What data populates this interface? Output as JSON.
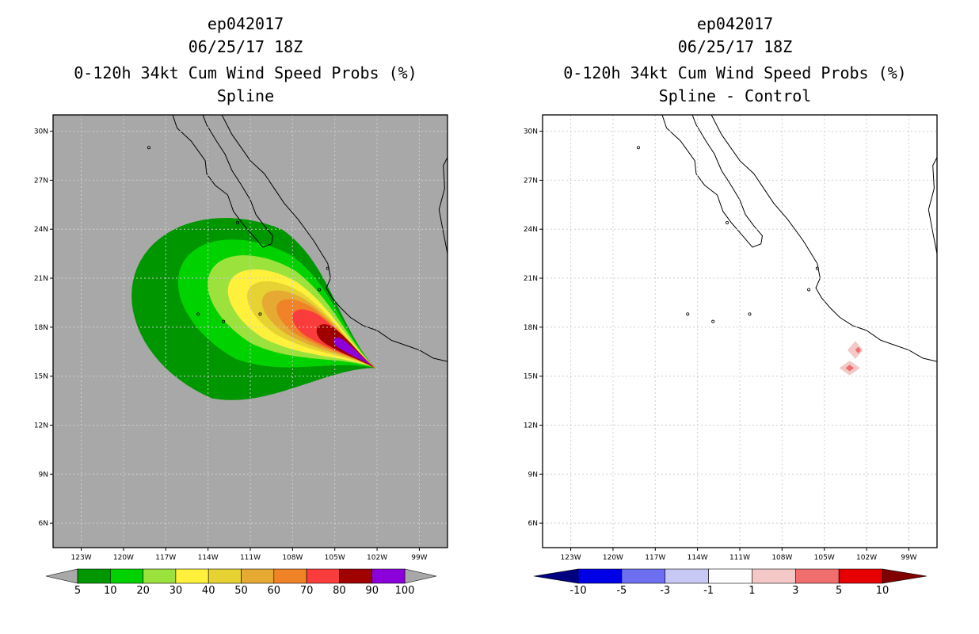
{
  "chart_data": [
    {
      "type": "heatmap",
      "panel": "left",
      "title_lines": [
        "ep042017",
        "06/25/17 18Z",
        "0-120h 34kt Cum Wind Speed Probs (%)",
        "Spline"
      ],
      "xlabel": "",
      "ylabel": "",
      "lon_range": [
        -125,
        -97
      ],
      "lat_range": [
        4.5,
        31
      ],
      "x_ticks": [
        "123W",
        "120W",
        "117W",
        "114W",
        "111W",
        "108W",
        "105W",
        "102W",
        "99W"
      ],
      "x_tick_values": [
        -123,
        -120,
        -117,
        -114,
        -111,
        -108,
        -105,
        -102,
        -99
      ],
      "y_ticks": [
        "30N",
        "27N",
        "24N",
        "21N",
        "18N",
        "15N",
        "12N",
        "9N",
        "6N"
      ],
      "y_tick_values": [
        30,
        27,
        24,
        21,
        18,
        15,
        12,
        9,
        6
      ],
      "grid": true,
      "background": "#a8a8a8",
      "colorbar": {
        "labels": [
          "5",
          "10",
          "20",
          "30",
          "40",
          "50",
          "60",
          "70",
          "80",
          "90",
          "100"
        ],
        "colors": [
          "#009600",
          "#00d200",
          "#9be23c",
          "#fff03c",
          "#e6d232",
          "#e6aa32",
          "#f08228",
          "#fa3c3c",
          "#a00000",
          "#8c00dc"
        ]
      },
      "features": [
        {
          "name": "prob-contour-5",
          "level": 5,
          "color": "#009600",
          "cx": -111.2,
          "cy": 18.8,
          "rx": 8.5,
          "ry": 5.6,
          "tip": [
            -102.1,
            15.5
          ],
          "rot": -22
        },
        {
          "name": "prob-contour-10",
          "level": 10,
          "color": "#00d200",
          "cx": -110.0,
          "cy": 19.2,
          "rx": 6.6,
          "ry": 3.6,
          "tip": [
            -102.1,
            15.5
          ],
          "rot": -22
        },
        {
          "name": "prob-contour-20",
          "level": 20,
          "color": "#9be23c",
          "cx": -109.3,
          "cy": 19.2,
          "rx": 5.2,
          "ry": 2.6,
          "tip": [
            -102.1,
            15.5
          ],
          "rot": -24
        },
        {
          "name": "prob-contour-30",
          "level": 30,
          "color": "#fff03c",
          "cx": -108.8,
          "cy": 19.0,
          "rx": 4.2,
          "ry": 2.0,
          "tip": [
            -102.1,
            15.5
          ],
          "rot": -26
        },
        {
          "name": "prob-contour-40",
          "level": 40,
          "color": "#e6d232",
          "cx": -108.2,
          "cy": 18.8,
          "rx": 3.4,
          "ry": 1.5,
          "tip": [
            -102.1,
            15.5
          ],
          "rot": -27
        },
        {
          "name": "prob-contour-50",
          "level": 50,
          "color": "#e6aa32",
          "cx": -107.7,
          "cy": 18.6,
          "rx": 2.8,
          "ry": 1.2,
          "tip": [
            -102.1,
            15.5
          ],
          "rot": -28
        },
        {
          "name": "prob-contour-60",
          "level": 60,
          "color": "#f08228",
          "cx": -107.2,
          "cy": 18.4,
          "rx": 2.2,
          "ry": 0.95,
          "tip": [
            -102.1,
            15.5
          ],
          "rot": -29
        },
        {
          "name": "prob-contour-70",
          "level": 70,
          "color": "#fa3c3c",
          "cx": -106.6,
          "cy": 18.1,
          "rx": 1.6,
          "ry": 0.75,
          "tip": [
            -102.1,
            15.5
          ],
          "rot": -31
        },
        {
          "name": "prob-contour-80",
          "level": 80,
          "color": "#a00000",
          "cx": -105.4,
          "cy": 17.5,
          "rx": 1.0,
          "ry": 0.55,
          "tip": [
            -102.2,
            15.5
          ],
          "rot": -33
        },
        {
          "name": "prob-contour-90",
          "level": 90,
          "color": "#8c00dc",
          "cx": -104.6,
          "cy": 17.0,
          "rx": 0.55,
          "ry": 0.28,
          "tip": [
            -102.3,
            15.6
          ],
          "rot": -36
        }
      ]
    },
    {
      "type": "heatmap",
      "panel": "right",
      "title_lines": [
        "ep042017",
        "06/25/17 18Z",
        "0-120h 34kt Cum Wind Speed Probs (%)",
        "Spline - Control"
      ],
      "xlabel": "",
      "ylabel": "",
      "lon_range": [
        -125,
        -97
      ],
      "lat_range": [
        4.5,
        31
      ],
      "x_ticks": [
        "123W",
        "120W",
        "117W",
        "114W",
        "111W",
        "108W",
        "105W",
        "102W",
        "99W"
      ],
      "x_tick_values": [
        -123,
        -120,
        -117,
        -114,
        -111,
        -108,
        -105,
        -102,
        -99
      ],
      "y_ticks": [
        "30N",
        "27N",
        "24N",
        "21N",
        "18N",
        "15N",
        "12N",
        "9N",
        "6N"
      ],
      "y_tick_values": [
        30,
        27,
        24,
        21,
        18,
        15,
        12,
        9,
        6
      ],
      "grid": true,
      "background": "#ffffff",
      "colorbar": {
        "labels": [
          "-10",
          "-5",
          "-3",
          "-1",
          "1",
          "3",
          "5",
          "10"
        ],
        "colors": [
          "#000080",
          "#0000e6",
          "#6e6ef0",
          "#c8c8f5",
          "#ffffff",
          "#f5c8c8",
          "#f06e6e",
          "#e60000",
          "#800000"
        ]
      },
      "features": [
        {
          "name": "diff-blob-1",
          "level": 1,
          "color": "#f5c8c8",
          "lon": -102.8,
          "lat": 16.6,
          "dlon": 0.55,
          "dlat": 0.55
        },
        {
          "name": "diff-blob-1-core",
          "level": 3,
          "color": "#f06e6e",
          "lon": -102.6,
          "lat": 16.6,
          "dlon": 0.2,
          "dlat": 0.2
        },
        {
          "name": "diff-blob-2",
          "level": 1,
          "color": "#f5c8c8",
          "lon": -103.2,
          "lat": 15.5,
          "dlon": 0.75,
          "dlat": 0.45
        },
        {
          "name": "diff-blob-2-core",
          "level": 3,
          "color": "#f06e6e",
          "lon": -103.2,
          "lat": 15.5,
          "dlon": 0.3,
          "dlat": 0.2
        }
      ]
    }
  ]
}
